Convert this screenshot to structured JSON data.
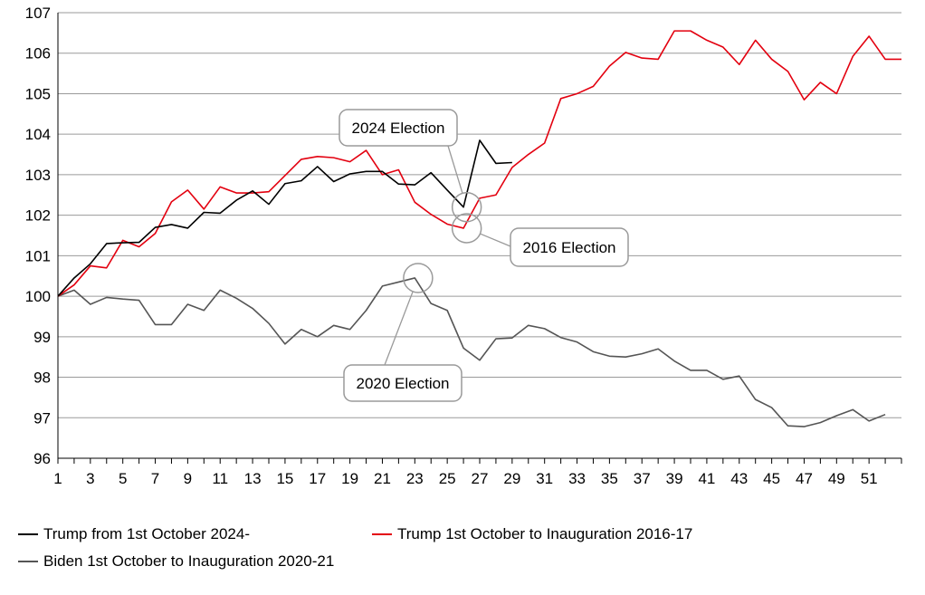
{
  "chart_data": {
    "type": "line",
    "title": "",
    "xlabel": "",
    "ylabel": "",
    "xlim": [
      1,
      53
    ],
    "ylim": [
      96,
      107
    ],
    "y_ticks": [
      96,
      97,
      98,
      99,
      100,
      101,
      102,
      103,
      104,
      105,
      106,
      107
    ],
    "x_tick_labels": [
      1,
      3,
      5,
      7,
      9,
      11,
      13,
      15,
      17,
      19,
      21,
      23,
      25,
      27,
      29,
      31,
      33,
      35,
      37,
      39,
      41,
      43,
      45,
      47,
      49,
      51
    ],
    "grid": "horizontal",
    "legend_position": "bottom",
    "series": [
      {
        "name": "Trump from 1st October 2024-",
        "color": "#000000",
        "x": [
          1,
          2,
          3,
          4,
          5,
          6,
          7,
          8,
          9,
          10,
          11,
          12,
          13,
          14,
          15,
          16,
          17,
          18,
          19,
          20,
          21,
          22,
          23,
          24,
          25,
          26,
          27,
          28,
          29
        ],
        "values": [
          100.0,
          100.45,
          100.8,
          101.3,
          101.32,
          101.33,
          101.7,
          101.77,
          101.68,
          102.07,
          102.05,
          102.37,
          102.6,
          102.27,
          102.78,
          102.85,
          103.2,
          102.83,
          103.02,
          103.08,
          103.08,
          102.77,
          102.75,
          103.05,
          102.62,
          102.2,
          103.85,
          103.28,
          103.3
        ]
      },
      {
        "name": "Trump 1st October to Inauguration 2016-17",
        "color": "#e3000f",
        "x": [
          1,
          2,
          3,
          4,
          5,
          6,
          7,
          8,
          9,
          10,
          11,
          12,
          13,
          14,
          15,
          16,
          17,
          18,
          19,
          20,
          21,
          22,
          23,
          24,
          25,
          26,
          27,
          28,
          29,
          30,
          31,
          32,
          33,
          34,
          35,
          36,
          37,
          38,
          39,
          40,
          41,
          42,
          43,
          44,
          45,
          46,
          47,
          48,
          49,
          50,
          51,
          52,
          53
        ],
        "values": [
          100.0,
          100.28,
          100.75,
          100.7,
          101.38,
          101.22,
          101.55,
          102.33,
          102.62,
          102.15,
          102.7,
          102.55,
          102.55,
          102.58,
          102.98,
          103.38,
          103.45,
          103.42,
          103.32,
          103.6,
          103.0,
          103.12,
          102.32,
          102.02,
          101.78,
          101.68,
          102.42,
          102.5,
          103.18,
          103.5,
          103.78,
          104.88,
          105.0,
          105.18,
          105.68,
          106.02,
          105.88,
          105.85,
          106.55,
          106.55,
          106.32,
          106.15,
          105.72,
          106.32,
          105.85,
          105.55,
          104.85,
          105.28,
          105.0,
          105.92,
          106.42,
          105.85,
          105.85
        ]
      },
      {
        "name": "Biden 1st October to Inauguration 2020-21",
        "color": "#555555",
        "x": [
          1,
          2,
          3,
          4,
          5,
          6,
          7,
          8,
          9,
          10,
          11,
          12,
          13,
          14,
          15,
          16,
          17,
          18,
          19,
          20,
          21,
          22,
          23,
          24,
          25,
          26,
          27,
          28,
          29,
          30,
          31,
          32,
          33,
          34,
          35,
          36,
          37,
          38,
          39,
          40,
          41,
          42,
          43,
          44,
          45,
          46,
          47,
          48,
          49,
          50,
          51,
          52
        ],
        "values": [
          100.0,
          100.15,
          99.8,
          99.97,
          99.93,
          99.9,
          99.3,
          99.3,
          99.8,
          99.65,
          100.15,
          99.95,
          99.7,
          99.33,
          98.82,
          99.18,
          99.0,
          99.28,
          99.18,
          99.65,
          100.25,
          100.35,
          100.45,
          99.82,
          99.65,
          98.72,
          98.42,
          98.95,
          98.97,
          99.28,
          99.2,
          98.98,
          98.87,
          98.63,
          98.52,
          98.5,
          98.58,
          98.7,
          98.4,
          98.17,
          98.17,
          97.95,
          98.03,
          97.45,
          97.25,
          96.8,
          96.78,
          96.88,
          97.05,
          97.2,
          96.92,
          97.08
        ]
      }
    ],
    "annotations": [
      {
        "text": "2024 Election",
        "x": 26.2,
        "y": 102.2
      },
      {
        "text": "2016 Election",
        "x": 26.2,
        "y": 101.68
      },
      {
        "text": "2020 Election",
        "x": 23.2,
        "y": 100.45
      }
    ]
  }
}
